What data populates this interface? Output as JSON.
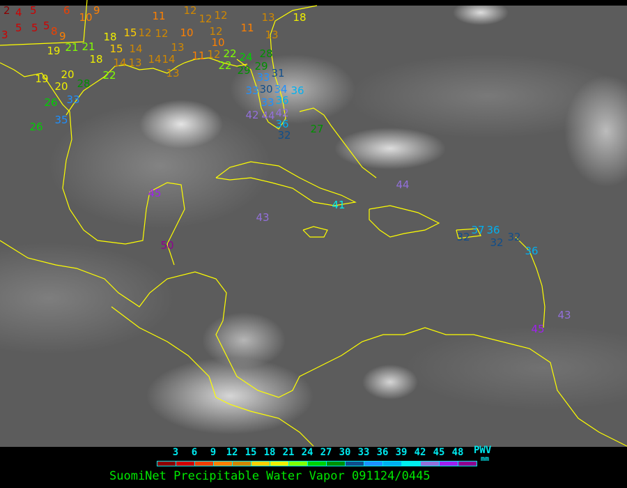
{
  "product_title": "SuomiNet Precipitable Water Vapor 091124/0445",
  "legend": {
    "label": "PWV",
    "unit": "mm",
    "ticks": [
      "3",
      "6",
      "9",
      "12",
      "15",
      "18",
      "21",
      "24",
      "27",
      "30",
      "33",
      "36",
      "39",
      "42",
      "45",
      "48"
    ],
    "colors": [
      "#8b0000",
      "#d00000",
      "#f04000",
      "#ff8000",
      "#d08800",
      "#ffd000",
      "#f0f000",
      "#80ff00",
      "#00d000",
      "#009000",
      "#104e8b",
      "#1e90ff",
      "#00b0f0",
      "#00eeee",
      "#9370db",
      "#a020f0",
      "#900090"
    ]
  },
  "border_color": "#ffff00",
  "stations": [
    "2",
    "4",
    "5",
    "5",
    "5",
    "3",
    "5",
    "8",
    "9",
    "6",
    "10",
    "9",
    "19",
    "21",
    "21",
    "18",
    "20",
    "19",
    "20",
    "28",
    "33",
    "26",
    "35",
    "26",
    "22",
    "18",
    "15",
    "15",
    "14",
    "14",
    "13",
    "14",
    "14",
    "13",
    "12",
    "12",
    "11",
    "12",
    "12",
    "12",
    "10",
    "12",
    "10",
    "11",
    "13",
    "13",
    "18",
    "13",
    "11",
    "12",
    "22",
    "22",
    "24",
    "29",
    "29",
    "28",
    "33",
    "31",
    "30",
    "34",
    "36",
    "33",
    "33",
    "36",
    "44",
    "42",
    "42",
    "36",
    "32",
    "27",
    "44",
    "41",
    "43",
    "45",
    "50",
    "32",
    "37",
    "36",
    "32",
    "32",
    "36",
    "43",
    "45"
  ]
}
